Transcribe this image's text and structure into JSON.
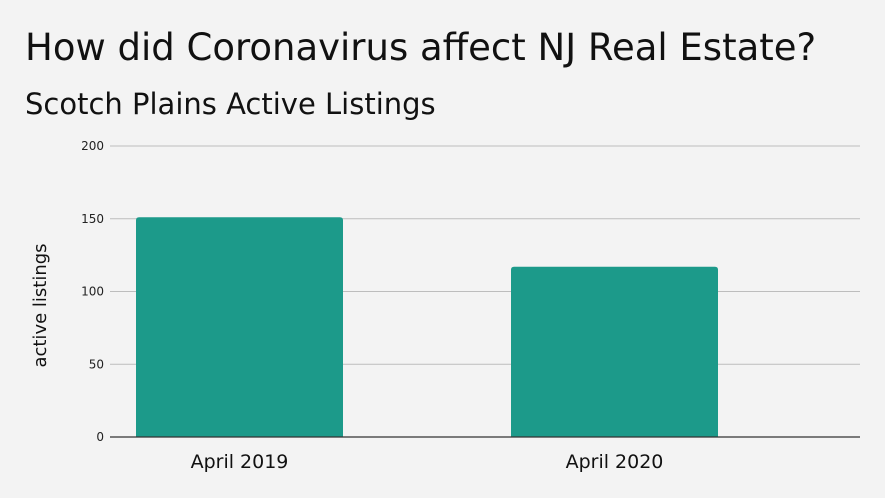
{
  "chart_data": {
    "type": "bar",
    "title": "How did Coronavirus affect NJ Real Estate?",
    "subtitle": "Scotch Plains Active Listings",
    "xlabel": "",
    "ylabel": "active listings",
    "categories": [
      "April 2019",
      "April 2020"
    ],
    "values": [
      151,
      117
    ],
    "ylim": [
      0,
      200
    ],
    "yticks": [
      "0",
      "50",
      "100",
      "150",
      "200"
    ],
    "grid": true,
    "bar_color": "#1c9a8a",
    "gridline_color": "#bdbdbd",
    "axis_color": "#333333",
    "background_color": "#f3f3f3"
  }
}
